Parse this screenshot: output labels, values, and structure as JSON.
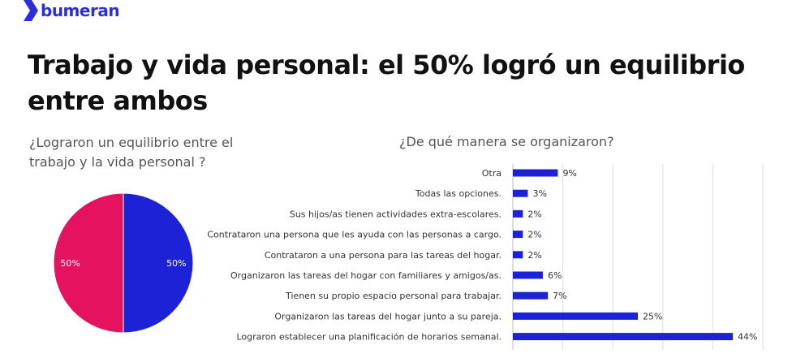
{
  "brand": {
    "name": "bumeran",
    "accent": "#2c2fd8"
  },
  "title": "Trabajo y vida personal: el 50% logró un equilibrio entre ambos",
  "chart_data": [
    {
      "type": "pie",
      "title": "¿Lograron un equilibrio entre el trabajo y la vida personal ?",
      "slices": [
        {
          "value": 50,
          "label": "50%",
          "color": "#1e22d6"
        },
        {
          "value": 50,
          "label": "50%",
          "color": "#e5125f"
        }
      ]
    },
    {
      "type": "bar",
      "orientation": "horizontal",
      "title": "¿De qué manera se organizaron?",
      "xlim": [
        0,
        50
      ],
      "grid": true,
      "color": "#1e22d6",
      "categories": [
        "Otra",
        "Todas las opciones.",
        "Sus hijos/as tienen actividades extra-escolares.",
        "Contrataron una persona que les ayuda con las personas a cargo.",
        "Contrataron a una persona para las tareas del hogar.",
        "Organizaron las tareas del hogar con familiares y amigos/as.",
        "Tienen su propio espacio personal para trabajar.",
        "Organizaron las tareas del hogar junto a su pareja.",
        "Lograron establecer una planificación de horarios semanal."
      ],
      "values": [
        9,
        3,
        2,
        2,
        2,
        6,
        7,
        25,
        44
      ],
      "value_labels": [
        "9%",
        "3%",
        "2%",
        "2%",
        "2%",
        "6%",
        "7%",
        "25%",
        "44%"
      ]
    }
  ]
}
